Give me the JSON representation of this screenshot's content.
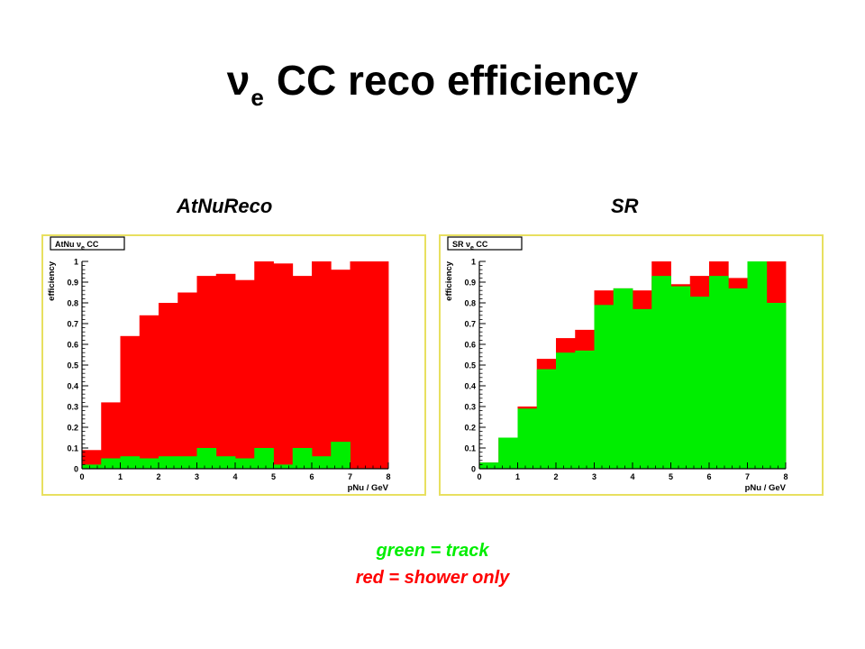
{
  "slide": {
    "title_symbol": "ν",
    "title_subscript": "e",
    "title_rest": "CC reco efficiency",
    "panel_left_label": "AtNuReco",
    "panel_right_label": "SR",
    "legend_green": "green = track",
    "legend_red": "red = shower only"
  },
  "colors": {
    "green": "#00ee00",
    "red": "#ff0000",
    "frame": "#e8e060"
  },
  "chart_data": [
    {
      "type": "bar",
      "stat_box": "AtNu  νe  CC",
      "xlabel": "pNu / GeV",
      "ylabel": "efficiency",
      "xlim": [
        0,
        8
      ],
      "ylim": [
        0,
        1
      ],
      "bin_width": 0.5,
      "x_ticks": [
        "0",
        "1",
        "2",
        "3",
        "4",
        "5",
        "6",
        "7",
        "8"
      ],
      "y_ticks": [
        "0",
        "0.1",
        "0.2",
        "0.3",
        "0.4",
        "0.5",
        "0.6",
        "0.7",
        "0.8",
        "0.9",
        "1"
      ],
      "bins": [
        0,
        0.5,
        1,
        1.5,
        2,
        2.5,
        3,
        3.5,
        4,
        4.5,
        5,
        5.5,
        6,
        6.5,
        7,
        7.5
      ],
      "series": [
        {
          "color": "red",
          "values": [
            0.09,
            0.32,
            0.64,
            0.74,
            0.8,
            0.85,
            0.93,
            0.94,
            0.91,
            1.0,
            0.99,
            0.93,
            1.0,
            0.96,
            1.0,
            1.0
          ]
        },
        {
          "color": "green",
          "values": [
            0.02,
            0.05,
            0.06,
            0.05,
            0.06,
            0.06,
            0.1,
            0.06,
            0.05,
            0.1,
            0.02,
            0.1,
            0.06,
            0.13,
            0.0,
            0.0
          ]
        }
      ]
    },
    {
      "type": "bar",
      "stat_box": "SR  νe  CC",
      "xlabel": "pNu / GeV",
      "ylabel": "efficiency",
      "xlim": [
        0,
        8
      ],
      "ylim": [
        0,
        1
      ],
      "bin_width": 0.5,
      "x_ticks": [
        "0",
        "1",
        "2",
        "3",
        "4",
        "5",
        "6",
        "7",
        "8"
      ],
      "y_ticks": [
        "0",
        "0.1",
        "0.2",
        "0.3",
        "0.4",
        "0.5",
        "0.6",
        "0.7",
        "0.8",
        "0.9",
        "1"
      ],
      "bins": [
        0,
        0.5,
        1,
        1.5,
        2,
        2.5,
        3,
        3.5,
        4,
        4.5,
        5,
        5.5,
        6,
        6.5,
        7,
        7.5
      ],
      "series": [
        {
          "color": "red",
          "values": [
            0.03,
            0.15,
            0.3,
            0.53,
            0.63,
            0.67,
            0.86,
            0.87,
            0.86,
            1.0,
            0.89,
            0.93,
            1.0,
            0.92,
            1.0,
            1.0
          ]
        },
        {
          "color": "green",
          "values": [
            0.03,
            0.15,
            0.29,
            0.48,
            0.56,
            0.57,
            0.79,
            0.87,
            0.77,
            0.93,
            0.88,
            0.83,
            0.93,
            0.87,
            1.0,
            0.8
          ]
        }
      ]
    }
  ]
}
